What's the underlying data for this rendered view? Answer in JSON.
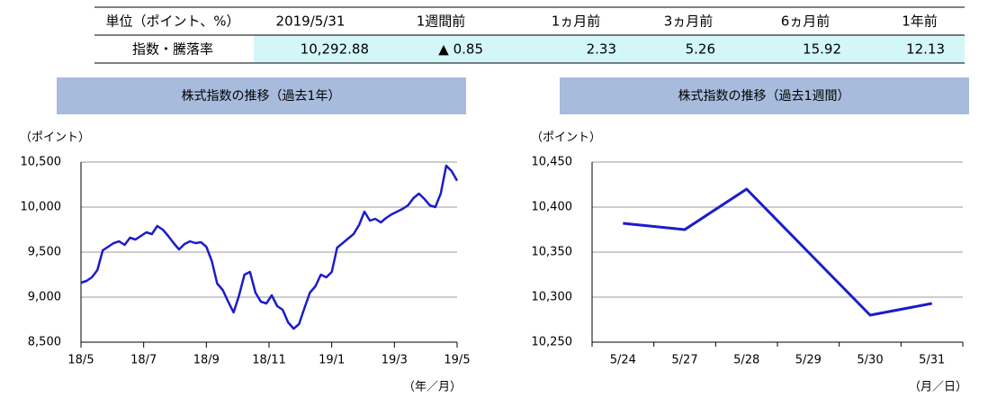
{
  "table": {
    "header": [
      "単位（ポイント、%）",
      "2019/5/31",
      "1週間前",
      "1ヵ月前",
      "3ヵ月前",
      "6ヵ月前",
      "1年前"
    ],
    "rows": [
      [
        "指数・騰落率",
        "10,292.88",
        "▲ 0.85",
        "2.33",
        "5.26",
        "15.92",
        "12.13"
      ]
    ]
  },
  "chart_data": [
    {
      "type": "line",
      "title": "株式指数の推移（過去1年）",
      "y_label": "（ポイント）",
      "x_label": "（年／月）",
      "xticks": [
        "18/5",
        "18/7",
        "18/9",
        "18/11",
        "19/1",
        "19/3",
        "19/5"
      ],
      "values": [
        9160,
        9180,
        9220,
        9300,
        9520,
        9560,
        9600,
        9620,
        9580,
        9660,
        9640,
        9680,
        9720,
        9700,
        9790,
        9750,
        9680,
        9600,
        9530,
        9590,
        9620,
        9600,
        9610,
        9560,
        9400,
        9150,
        9080,
        8950,
        8830,
        9020,
        9250,
        9280,
        9050,
        8950,
        8930,
        9020,
        8900,
        8860,
        8720,
        8650,
        8700,
        8880,
        9050,
        9120,
        9250,
        9220,
        9280,
        9550,
        9600,
        9650,
        9700,
        9800,
        9950,
        9850,
        9870,
        9830,
        9880,
        9920,
        9950,
        9980,
        10020,
        10100,
        10150,
        10090,
        10020,
        10000,
        10150,
        10460,
        10400,
        10293
      ],
      "color": "#1c1cc8",
      "ylim": [
        8500,
        10500
      ],
      "yticks": [
        {
          "value": 8500,
          "label": "8,500"
        },
        {
          "value": 9000,
          "label": "9,000"
        },
        {
          "value": 9500,
          "label": "9,500"
        },
        {
          "value": 10000,
          "label": "10,000"
        },
        {
          "value": 10500,
          "label": "10,500"
        }
      ],
      "grid": true
    },
    {
      "type": "line",
      "title": "株式指数の推移（過去1週間）",
      "y_label": "（ポイント）",
      "x_label": "（月／日）",
      "categories": [
        "5/24",
        "5/27",
        "5/28",
        "5/29",
        "5/30",
        "5/31"
      ],
      "values": [
        10382,
        10375,
        10420,
        10350,
        10280,
        10293
      ],
      "color": "#1c1cc8",
      "ylim": [
        10250,
        10450
      ],
      "yticks": [
        {
          "value": 10250,
          "label": "10,250"
        },
        {
          "value": 10300,
          "label": "10,300"
        },
        {
          "value": 10350,
          "label": "10,350"
        },
        {
          "value": 10400,
          "label": "10,400"
        },
        {
          "value": 10450,
          "label": "10,450"
        }
      ],
      "grid": true
    }
  ]
}
